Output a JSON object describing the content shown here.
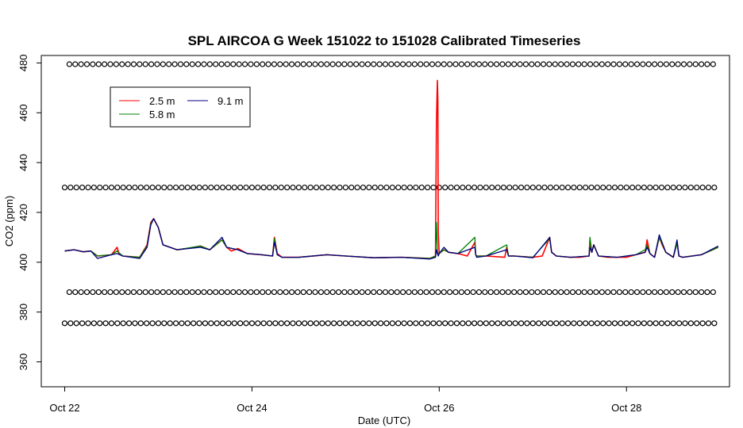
{
  "chart_data": {
    "type": "line",
    "title": "SPL AIRCOA G  Week 151022 to 151028  Calibrated Timeseries",
    "xlabel": "Date (UTC)",
    "ylabel": "CO2 (ppm)",
    "xlim_days": [
      -0.25,
      7.1
    ],
    "ylim": [
      350,
      483
    ],
    "x_ticks": [
      {
        "day": 0,
        "label": "Oct 22"
      },
      {
        "day": 2,
        "label": "Oct 24"
      },
      {
        "day": 4,
        "label": "Oct 26"
      },
      {
        "day": 6,
        "label": "Oct 28"
      }
    ],
    "y_ticks": [
      360,
      380,
      400,
      420,
      440,
      460,
      480
    ],
    "legend": {
      "position": "top-left",
      "entries": [
        {
          "name": "2.5 m",
          "color": "#ff0000"
        },
        {
          "name": "5.8 m",
          "color": "#008000"
        },
        {
          "name": "9.1 m",
          "color": "#000080"
        }
      ]
    },
    "series": [
      {
        "name": "2.5 m",
        "color": "#ff0000",
        "x": [
          0.0,
          0.1,
          0.2,
          0.28,
          0.35,
          0.5,
          0.56,
          0.58,
          0.62,
          0.8,
          0.88,
          0.92,
          0.95,
          1.0,
          1.05,
          1.2,
          1.3,
          1.45,
          1.55,
          1.68,
          1.73,
          1.78,
          1.85,
          1.95,
          2.1,
          2.22,
          2.24,
          2.27,
          2.32,
          2.5,
          2.8,
          3.0,
          3.3,
          3.6,
          3.9,
          3.96,
          3.97,
          3.98,
          3.985,
          3.99,
          4.0,
          4.05,
          4.1,
          4.2,
          4.3,
          4.38,
          4.39,
          4.4,
          4.5,
          4.7,
          4.72,
          4.74,
          4.8,
          5.0,
          5.1,
          5.18,
          5.2,
          5.25,
          5.4,
          5.5,
          5.6,
          5.61,
          5.63,
          5.65,
          5.7,
          5.8,
          5.9,
          6.0,
          6.1,
          6.2,
          6.22,
          6.25,
          6.3,
          6.35,
          6.38,
          6.42,
          6.5,
          6.54,
          6.56,
          6.6,
          6.7,
          6.8,
          6.98
        ],
        "y": [
          404.5,
          405,
          404.2,
          404.5,
          402.5,
          403,
          406,
          403.5,
          402.5,
          402,
          407,
          416,
          417.5,
          414,
          407,
          405,
          405.5,
          406.5,
          405,
          409,
          406,
          404.5,
          405.5,
          403.5,
          403,
          402.5,
          410,
          403.5,
          402,
          402,
          403,
          402.5,
          401.8,
          402,
          401.5,
          402.5,
          456,
          473,
          465,
          412,
          403.5,
          405,
          404,
          403.5,
          402.5,
          408,
          403,
          402.5,
          402.5,
          402,
          406,
          402.5,
          402.5,
          402,
          402.5,
          410,
          404,
          402.5,
          402,
          402,
          402.5,
          409,
          404,
          407,
          402.5,
          402,
          402,
          402,
          403,
          404,
          409,
          403.5,
          402,
          410,
          407,
          404,
          402,
          408,
          402.5,
          402,
          402.5,
          403,
          406
        ]
      },
      {
        "name": "5.8 m",
        "color": "#008000",
        "x": [
          0.0,
          0.1,
          0.2,
          0.28,
          0.35,
          0.5,
          0.56,
          0.62,
          0.8,
          0.88,
          0.92,
          0.95,
          1.0,
          1.05,
          1.2,
          1.45,
          1.55,
          1.68,
          1.73,
          1.85,
          1.95,
          2.1,
          2.22,
          2.24,
          2.27,
          2.32,
          2.5,
          2.8,
          3.0,
          3.3,
          3.6,
          3.9,
          3.96,
          3.97,
          3.98,
          3.99,
          4.0,
          4.05,
          4.1,
          4.2,
          4.38,
          4.39,
          4.4,
          4.5,
          4.72,
          4.74,
          4.8,
          5.0,
          5.18,
          5.2,
          5.25,
          5.4,
          5.6,
          5.61,
          5.63,
          5.65,
          5.7,
          5.9,
          6.1,
          6.2,
          6.22,
          6.25,
          6.3,
          6.35,
          6.42,
          6.5,
          6.54,
          6.56,
          6.6,
          6.8,
          6.98
        ],
        "y": [
          404.5,
          405,
          404.2,
          404.5,
          402.5,
          403,
          404.5,
          402.5,
          402,
          406.5,
          415.5,
          417.5,
          414,
          407,
          405,
          406.5,
          405,
          409,
          406,
          405,
          403.5,
          403,
          402.5,
          409.5,
          403,
          402,
          402,
          403,
          402.5,
          401.8,
          402,
          401.5,
          402.5,
          416,
          404.5,
          403,
          403.5,
          405,
          404,
          403.5,
          410,
          403,
          402.5,
          402.5,
          407,
          402.5,
          402.5,
          402,
          409.5,
          404,
          402.5,
          402,
          402.5,
          410,
          404,
          407,
          402.5,
          402,
          403,
          405,
          407,
          403.5,
          402,
          410,
          404,
          402,
          407.5,
          402.5,
          402,
          403,
          406
        ]
      },
      {
        "name": "9.1 m",
        "color": "#000080",
        "x": [
          0.0,
          0.1,
          0.2,
          0.28,
          0.35,
          0.5,
          0.56,
          0.62,
          0.8,
          0.88,
          0.92,
          0.95,
          1.0,
          1.05,
          1.2,
          1.45,
          1.55,
          1.68,
          1.73,
          1.85,
          1.95,
          2.1,
          2.22,
          2.24,
          2.27,
          2.32,
          2.5,
          2.8,
          3.0,
          3.3,
          3.6,
          3.9,
          3.96,
          3.97,
          3.98,
          3.99,
          4.0,
          4.05,
          4.1,
          4.2,
          4.38,
          4.39,
          4.4,
          4.5,
          4.72,
          4.74,
          4.8,
          5.0,
          5.18,
          5.2,
          5.25,
          5.4,
          5.6,
          5.61,
          5.63,
          5.65,
          5.7,
          5.9,
          6.1,
          6.2,
          6.22,
          6.25,
          6.3,
          6.35,
          6.42,
          6.5,
          6.54,
          6.56,
          6.6,
          6.8,
          6.98
        ],
        "y": [
          404.5,
          405,
          404.2,
          404.5,
          401.5,
          403,
          403.5,
          402.5,
          401.5,
          406,
          415,
          417.5,
          414,
          407,
          405,
          406,
          405,
          410,
          406,
          405,
          403.5,
          403,
          402.5,
          408,
          403,
          402,
          402,
          403,
          402.5,
          401.8,
          402,
          401.3,
          402,
          405,
          403.5,
          402.5,
          403.5,
          406,
          404,
          403.5,
          406,
          403,
          402,
          402.5,
          405,
          402.5,
          402.5,
          401.8,
          410,
          404,
          402.5,
          402,
          402.5,
          406,
          404,
          407,
          402.5,
          402,
          403,
          404,
          406,
          403.5,
          402,
          411,
          404,
          402,
          409,
          402.5,
          402,
          403,
          406.5
        ]
      }
    ],
    "reference_circles": [
      {
        "y": 479.5,
        "color": "#000000"
      },
      {
        "y": 430,
        "color": "#000000"
      },
      {
        "y": 388,
        "color": "#000000"
      },
      {
        "y": 375.5,
        "color": "#000000"
      }
    ]
  }
}
